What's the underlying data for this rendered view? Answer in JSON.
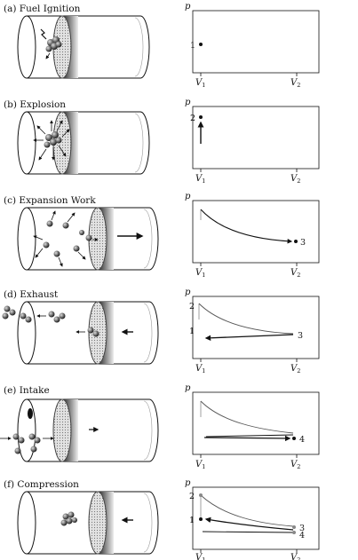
{
  "panels": [
    {
      "id": "a",
      "caption": "(a) Fuel Ignition"
    },
    {
      "id": "b",
      "caption": "(b) Explosion"
    },
    {
      "id": "c",
      "caption": "(c) Expansion Work"
    },
    {
      "id": "d",
      "caption": "(d) Exhaust"
    },
    {
      "id": "e",
      "caption": "(e) Intake"
    },
    {
      "id": "f",
      "caption": "(f) Compression"
    }
  ],
  "axis": {
    "y_label": "p",
    "v1_main": "V",
    "v1_sub": "1",
    "v2_main": "V",
    "v2_sub": "2"
  },
  "points": {
    "p1": "1",
    "p2": "2",
    "p3": "3",
    "p4": "4"
  },
  "colors": {
    "ink": "#111111",
    "piston_face": "#cfcfcf",
    "piston_edge": "#444444"
  }
}
